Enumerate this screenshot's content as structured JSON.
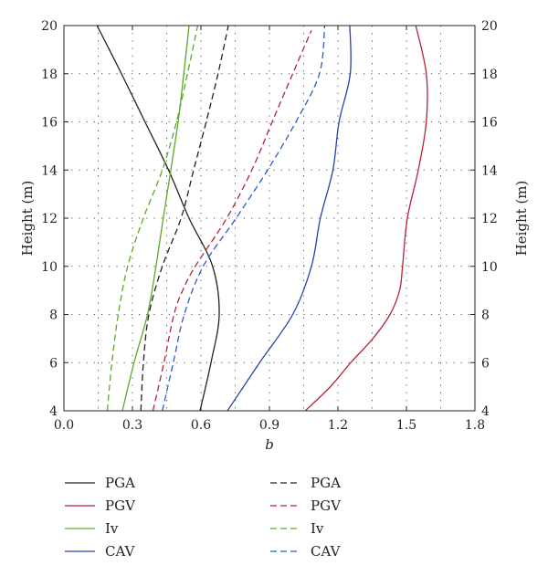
{
  "chart_data": {
    "type": "line",
    "xlabel": "b",
    "ylabel": "Height (m)",
    "ylabel_right": "Height (m)",
    "xlim": [
      0.0,
      1.8
    ],
    "ylim": [
      4,
      20
    ],
    "xticks": [
      "0.0",
      "0.3",
      "0.6",
      "0.9",
      "1.2",
      "1.5",
      "1.8"
    ],
    "xtick_values": [
      0.0,
      0.3,
      0.6,
      0.9,
      1.2,
      1.5,
      1.8
    ],
    "yticks": [
      "4",
      "6",
      "8",
      "10",
      "12",
      "14",
      "16",
      "18",
      "20"
    ],
    "ytick_values": [
      4,
      6,
      8,
      10,
      12,
      14,
      16,
      18,
      20
    ],
    "grid": "dotted, every 0.15 in b and 2 m in height",
    "legend": "bottom, two columns",
    "series": [
      {
        "name": "PGA",
        "style": "solid",
        "color": "#222222",
        "points": [
          [
            0.596,
            4
          ],
          [
            0.644,
            6
          ],
          [
            0.68,
            8
          ],
          [
            0.651,
            10
          ],
          [
            0.548,
            12
          ],
          [
            0.458,
            14
          ],
          [
            0.355,
            16
          ],
          [
            0.252,
            18
          ],
          [
            0.145,
            20
          ]
        ]
      },
      {
        "name": "PGV",
        "style": "solid",
        "color": "#b5223a",
        "points": [
          [
            1.057,
            4
          ],
          [
            1.167,
            5
          ],
          [
            1.256,
            6
          ],
          [
            1.353,
            7
          ],
          [
            1.428,
            8
          ],
          [
            1.47,
            9
          ],
          [
            1.483,
            10
          ],
          [
            1.504,
            12
          ],
          [
            1.552,
            14
          ],
          [
            1.587,
            16
          ],
          [
            1.587,
            18
          ],
          [
            1.541,
            20
          ]
        ]
      },
      {
        "name": "Iv",
        "style": "solid",
        "color": "#5aaa28",
        "points": [
          [
            0.256,
            4
          ],
          [
            0.307,
            6
          ],
          [
            0.366,
            8
          ],
          [
            0.403,
            10
          ],
          [
            0.435,
            12
          ],
          [
            0.468,
            14
          ],
          [
            0.5,
            16
          ],
          [
            0.525,
            18
          ],
          [
            0.548,
            20
          ]
        ]
      },
      {
        "name": "CAV",
        "style": "solid",
        "color": "#2741b0",
        "points": [
          [
            0.716,
            4
          ],
          [
            0.857,
            6
          ],
          [
            1.002,
            8
          ],
          [
            1.084,
            10
          ],
          [
            1.123,
            12
          ],
          [
            1.178,
            14
          ],
          [
            1.205,
            16
          ],
          [
            1.254,
            18
          ],
          [
            1.252,
            20
          ]
        ]
      },
      {
        "name": "PGA",
        "style": "dashed",
        "color": "#222222",
        "points": [
          [
            0.337,
            4
          ],
          [
            0.348,
            6
          ],
          [
            0.372,
            8
          ],
          [
            0.431,
            10
          ],
          [
            0.513,
            12
          ],
          [
            0.568,
            14
          ],
          [
            0.623,
            16
          ],
          [
            0.675,
            18
          ],
          [
            0.72,
            20
          ]
        ]
      },
      {
        "name": "PGV",
        "style": "dashed",
        "color": "#b5223a",
        "points": [
          [
            0.39,
            4
          ],
          [
            0.438,
            6
          ],
          [
            0.482,
            8
          ],
          [
            0.52,
            9
          ],
          [
            0.575,
            10
          ],
          [
            0.713,
            12
          ],
          [
            0.823,
            14
          ],
          [
            0.912,
            16
          ],
          [
            1.002,
            18
          ],
          [
            1.084,
            19.8
          ]
        ]
      },
      {
        "name": "Iv",
        "style": "dashed",
        "color": "#5aaa28",
        "points": [
          [
            0.19,
            4
          ],
          [
            0.21,
            6
          ],
          [
            0.238,
            8
          ],
          [
            0.279,
            10
          ],
          [
            0.348,
            12
          ],
          [
            0.431,
            14
          ],
          [
            0.493,
            16
          ],
          [
            0.541,
            18
          ],
          [
            0.586,
            20
          ]
        ]
      },
      {
        "name": "CAV",
        "style": "dashed",
        "color": "#2c5bd0",
        "points": [
          [
            0.431,
            4
          ],
          [
            0.479,
            6
          ],
          [
            0.527,
            8
          ],
          [
            0.61,
            10
          ],
          [
            0.754,
            12
          ],
          [
            0.892,
            14
          ],
          [
            1.016,
            16
          ],
          [
            1.119,
            18
          ],
          [
            1.142,
            20
          ]
        ]
      }
    ]
  }
}
